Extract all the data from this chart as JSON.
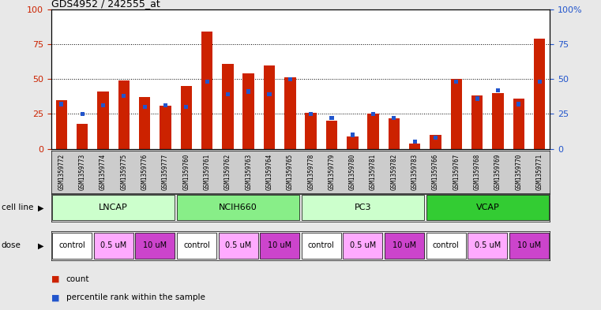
{
  "title": "GDS4952 / 242555_at",
  "samples": [
    "GSM1359772",
    "GSM1359773",
    "GSM1359774",
    "GSM1359775",
    "GSM1359776",
    "GSM1359777",
    "GSM1359760",
    "GSM1359761",
    "GSM1359762",
    "GSM1359763",
    "GSM1359764",
    "GSM1359765",
    "GSM1359778",
    "GSM1359779",
    "GSM1359780",
    "GSM1359781",
    "GSM1359782",
    "GSM1359783",
    "GSM1359766",
    "GSM1359767",
    "GSM1359768",
    "GSM1359769",
    "GSM1359770",
    "GSM1359771"
  ],
  "counts": [
    35,
    18,
    41,
    49,
    37,
    31,
    45,
    84,
    61,
    54,
    60,
    51,
    26,
    20,
    9,
    25,
    22,
    4,
    10,
    50,
    38,
    40,
    36,
    79
  ],
  "percentiles": [
    32,
    25,
    31,
    38,
    30,
    31,
    30,
    48,
    39,
    41,
    39,
    50,
    25,
    22,
    10,
    25,
    22,
    5,
    8,
    48,
    36,
    42,
    32,
    48
  ],
  "cell_lines": [
    {
      "name": "LNCAP",
      "start": 0,
      "end": 6,
      "color": "#ccffcc"
    },
    {
      "name": "NCIH660",
      "start": 6,
      "end": 12,
      "color": "#88ee88"
    },
    {
      "name": "PC3",
      "start": 12,
      "end": 18,
      "color": "#ccffcc"
    },
    {
      "name": "VCAP",
      "start": 18,
      "end": 24,
      "color": "#33cc33"
    }
  ],
  "doses": [
    {
      "label": "control",
      "start": 0,
      "end": 2,
      "color": "#ffffff"
    },
    {
      "label": "0.5 uM",
      "start": 2,
      "end": 4,
      "color": "#ffaaff"
    },
    {
      "label": "10 uM",
      "start": 4,
      "end": 6,
      "color": "#cc44cc"
    },
    {
      "label": "control",
      "start": 6,
      "end": 8,
      "color": "#ffffff"
    },
    {
      "label": "0.5 uM",
      "start": 8,
      "end": 10,
      "color": "#ffaaff"
    },
    {
      "label": "10 uM",
      "start": 10,
      "end": 12,
      "color": "#cc44cc"
    },
    {
      "label": "control",
      "start": 12,
      "end": 14,
      "color": "#ffffff"
    },
    {
      "label": "0.5 uM",
      "start": 14,
      "end": 16,
      "color": "#ffaaff"
    },
    {
      "label": "10 uM",
      "start": 16,
      "end": 18,
      "color": "#cc44cc"
    },
    {
      "label": "control",
      "start": 18,
      "end": 20,
      "color": "#ffffff"
    },
    {
      "label": "0.5 uM",
      "start": 20,
      "end": 22,
      "color": "#ffaaff"
    },
    {
      "label": "10 uM",
      "start": 22,
      "end": 24,
      "color": "#cc44cc"
    }
  ],
  "bar_color": "#cc2200",
  "percentile_color": "#2255cc",
  "bg_color": "#e8e8e8",
  "plot_bg": "#ffffff",
  "xticklabel_bg": "#cccccc",
  "legend_count_label": "count",
  "legend_pct_label": "percentile rank within the sample",
  "left_label": "cell line",
  "dose_label": "dose"
}
